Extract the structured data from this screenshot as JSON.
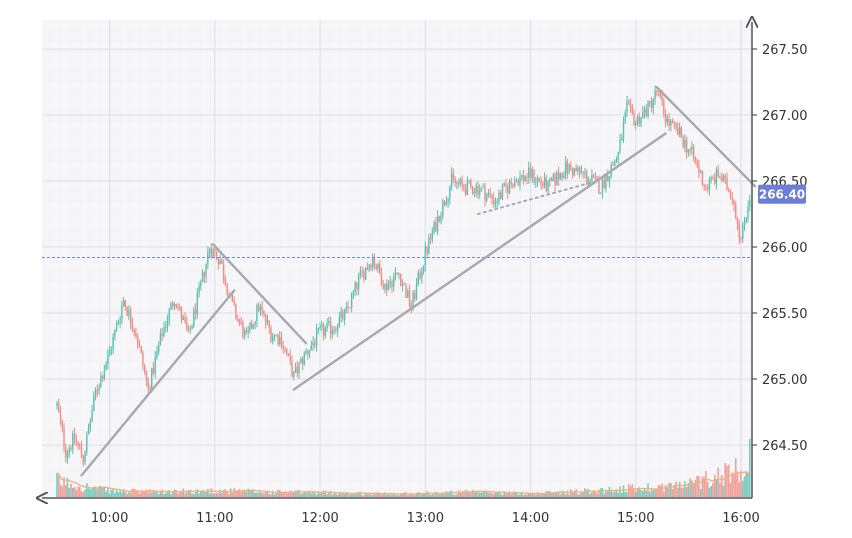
{
  "chart_data": {
    "type": "candlestick",
    "x_ticks": [
      "10:00",
      "11:00",
      "12:00",
      "13:00",
      "14:00",
      "15:00",
      "16:00"
    ],
    "y_ticks": [
      "264.50",
      "265.00",
      "265.50",
      "266.00",
      "266.50",
      "267.00",
      "267.50"
    ],
    "ylim": [
      264.05,
      267.65
    ],
    "xlim": [
      "09:30",
      "16:05"
    ],
    "grid": true,
    "current_price": {
      "label": "266.40",
      "value": 266.4
    },
    "reference_line": {
      "value": 265.92,
      "style": "dashed"
    },
    "colors": {
      "up": "#5cc1b0",
      "down": "#ee8c84",
      "volume_ma": "#f3b07a",
      "trendline": "#a8a8b0",
      "reference": "#6d8be0",
      "price_tag": "#6d7ed6",
      "grid": "#dddde6",
      "background": "#f6f5f8"
    },
    "series": [
      {
        "type": "trendline",
        "points": [
          [
            "09:44",
            264.27
          ],
          [
            "11:11",
            265.67
          ]
        ]
      },
      {
        "type": "trendline",
        "points": [
          [
            "10:59",
            266.02
          ],
          [
            "11:52",
            265.27
          ]
        ]
      },
      {
        "type": "trendline",
        "points": [
          [
            "11:45",
            264.92
          ],
          [
            "15:17",
            266.86
          ]
        ]
      },
      {
        "type": "trendline",
        "points": [
          [
            "15:12",
            267.21
          ],
          [
            "16:08",
            266.46
          ]
        ]
      },
      {
        "type": "trendline",
        "dashed": true,
        "points": [
          [
            "13:30",
            266.25
          ],
          [
            "14:35",
            266.49
          ]
        ]
      }
    ],
    "price_path": [
      [
        "09:30",
        264.8
      ],
      [
        "09:35",
        264.45
      ],
      [
        "09:40",
        264.55
      ],
      [
        "09:45",
        264.4
      ],
      [
        "09:52",
        264.9
      ],
      [
        "10:00",
        265.2
      ],
      [
        "10:08",
        265.6
      ],
      [
        "10:15",
        265.35
      ],
      [
        "10:22",
        264.92
      ],
      [
        "10:30",
        265.35
      ],
      [
        "10:37",
        265.62
      ],
      [
        "10:45",
        265.32
      ],
      [
        "10:52",
        265.7
      ],
      [
        "10:57",
        266.0
      ],
      [
        "11:03",
        265.9
      ],
      [
        "11:10",
        265.55
      ],
      [
        "11:18",
        265.3
      ],
      [
        "11:25",
        265.55
      ],
      [
        "11:32",
        265.35
      ],
      [
        "11:38",
        265.3
      ],
      [
        "11:45",
        265.02
      ],
      [
        "11:52",
        265.2
      ],
      [
        "12:00",
        265.35
      ],
      [
        "12:08",
        265.4
      ],
      [
        "12:15",
        265.5
      ],
      [
        "12:22",
        265.75
      ],
      [
        "12:30",
        265.92
      ],
      [
        "12:37",
        265.7
      ],
      [
        "12:45",
        265.8
      ],
      [
        "12:52",
        265.55
      ],
      [
        "13:00",
        265.95
      ],
      [
        "13:08",
        266.25
      ],
      [
        "13:15",
        266.5
      ],
      [
        "13:22",
        266.45
      ],
      [
        "13:30",
        266.45
      ],
      [
        "13:40",
        266.35
      ],
      [
        "13:50",
        266.5
      ],
      [
        "14:00",
        266.55
      ],
      [
        "14:10",
        266.45
      ],
      [
        "14:20",
        266.6
      ],
      [
        "14:30",
        266.55
      ],
      [
        "14:40",
        266.45
      ],
      [
        "14:50",
        266.7
      ],
      [
        "14:55",
        267.05
      ],
      [
        "15:00",
        266.95
      ],
      [
        "15:07",
        267.05
      ],
      [
        "15:12",
        267.18
      ],
      [
        "15:18",
        266.95
      ],
      [
        "15:25",
        266.85
      ],
      [
        "15:32",
        266.7
      ],
      [
        "15:40",
        266.45
      ],
      [
        "15:47",
        266.55
      ],
      [
        "15:55",
        266.4
      ],
      [
        "16:00",
        266.05
      ],
      [
        "16:05",
        266.4
      ]
    ],
    "volume_series": [
      [
        "09:30",
        0.32
      ],
      [
        "10:00",
        0.12
      ],
      [
        "10:30",
        0.1
      ],
      [
        "11:00",
        0.13
      ],
      [
        "11:30",
        0.1
      ],
      [
        "12:00",
        0.09
      ],
      [
        "12:30",
        0.07
      ],
      [
        "13:00",
        0.08
      ],
      [
        "13:30",
        0.1
      ],
      [
        "14:00",
        0.07
      ],
      [
        "14:30",
        0.12
      ],
      [
        "15:00",
        0.18
      ],
      [
        "15:30",
        0.25
      ],
      [
        "16:00",
        0.6
      ],
      [
        "16:05",
        1.0
      ]
    ]
  }
}
